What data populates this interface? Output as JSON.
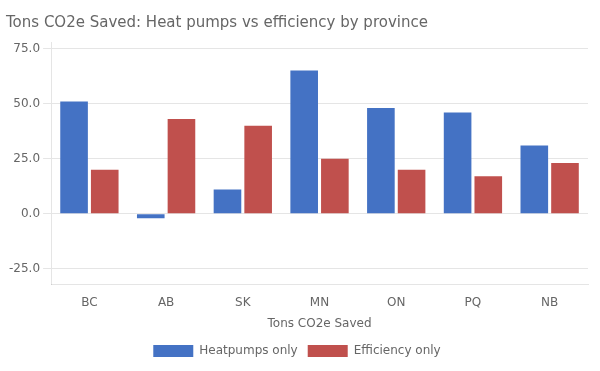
{
  "chart_data": {
    "type": "bar",
    "title": "Tons CO2e Saved: Heat pumps vs efficiency by province",
    "x_label": "Tons CO2e Saved",
    "categories": [
      "BC",
      "AB",
      "SK",
      "MN",
      "ON",
      "PQ",
      "NB"
    ],
    "series": [
      {
        "name": "Heatpumps only",
        "color": "#4472C4",
        "values": [
          51,
          -2,
          11,
          65,
          48,
          46,
          31
        ]
      },
      {
        "name": "Efficiency only",
        "color": "#C0504D",
        "values": [
          20,
          43,
          40,
          25,
          20,
          17,
          23
        ]
      }
    ],
    "ylim": [
      -32,
      78
    ],
    "yticks": [
      {
        "value": -25.0,
        "label": "-25.0"
      },
      {
        "value": 0.0,
        "label": "0.0"
      },
      {
        "value": 25.0,
        "label": "25.0"
      },
      {
        "value": 50.0,
        "label": "50.0"
      },
      {
        "value": 75.0,
        "label": "75.0"
      }
    ],
    "grid": true,
    "legend": "bottom"
  }
}
